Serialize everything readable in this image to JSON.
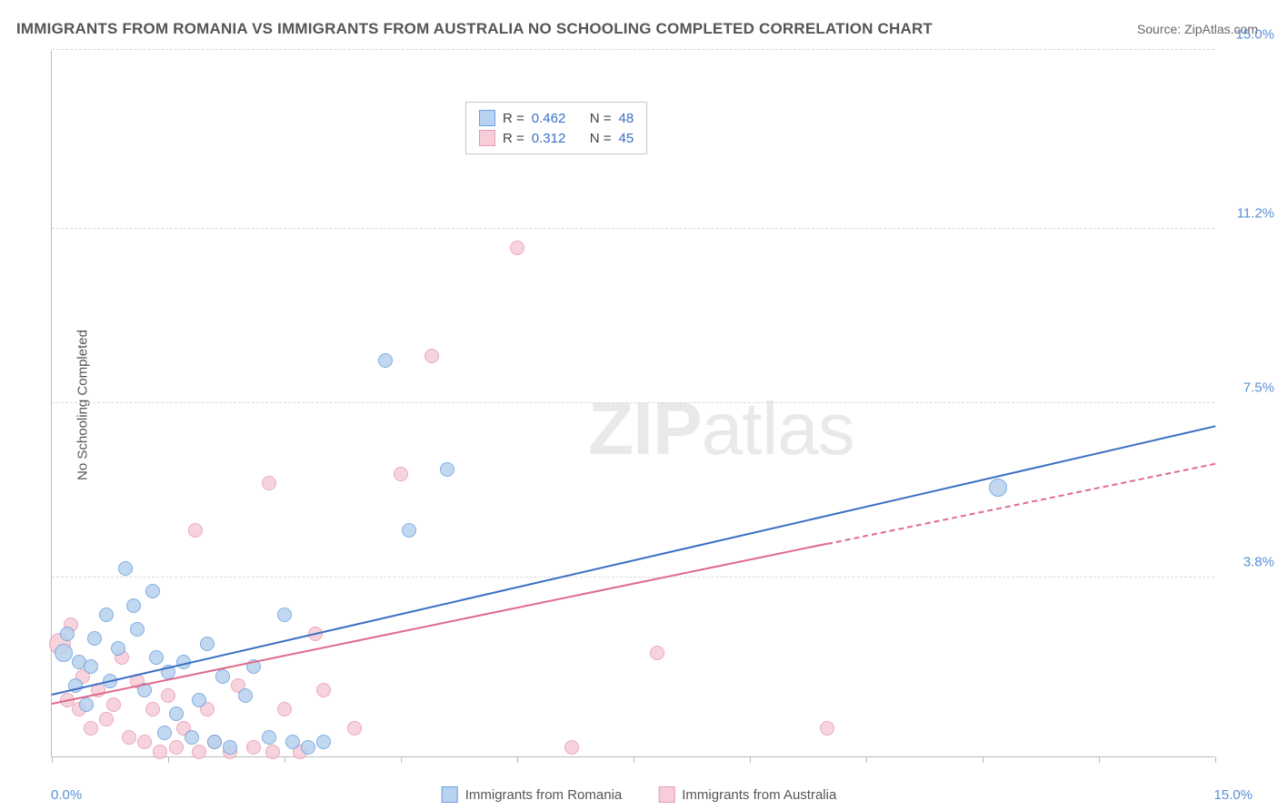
{
  "title": "IMMIGRANTS FROM ROMANIA VS IMMIGRANTS FROM AUSTRALIA NO SCHOOLING COMPLETED CORRELATION CHART",
  "source_label": "Source: ZipAtlas.com",
  "y_axis_title": "No Schooling Completed",
  "watermark_zip": "ZIP",
  "watermark_atlas": "atlas",
  "chart": {
    "type": "scatter",
    "xlim": [
      0,
      15
    ],
    "ylim": [
      0,
      15
    ],
    "x_tick_positions": [
      0,
      1.5,
      3.0,
      4.5,
      6.0,
      7.5,
      9.0,
      10.5,
      12.0,
      13.5,
      15.0
    ],
    "x_label_min": "0.0%",
    "x_label_max": "15.0%",
    "y_ticks": [
      {
        "pos": 3.8,
        "label": "3.8%"
      },
      {
        "pos": 7.5,
        "label": "7.5%"
      },
      {
        "pos": 11.2,
        "label": "11.2%"
      },
      {
        "pos": 15.0,
        "label": "15.0%"
      }
    ],
    "background_color": "#ffffff",
    "grid_color": "#d8d8d8",
    "series": [
      {
        "name": "Immigrants from Romania",
        "color_fill": "#b8d2ef",
        "color_stroke": "#6ca0dd",
        "line_color": "#3b6fc4",
        "r_label": "R =",
        "r_value": "0.462",
        "n_label": "N =",
        "n_value": "48",
        "marker_radius": 8,
        "trend": {
          "x1": 0,
          "y1": 1.3,
          "x2": 15,
          "y2": 7.0,
          "solid_until_x": 15
        },
        "points": [
          {
            "x": 0.15,
            "y": 2.2,
            "r": 10
          },
          {
            "x": 0.2,
            "y": 2.6,
            "r": 8
          },
          {
            "x": 0.3,
            "y": 1.5,
            "r": 8
          },
          {
            "x": 0.35,
            "y": 2.0,
            "r": 8
          },
          {
            "x": 0.45,
            "y": 1.1,
            "r": 8
          },
          {
            "x": 0.5,
            "y": 1.9,
            "r": 8
          },
          {
            "x": 0.55,
            "y": 2.5,
            "r": 8
          },
          {
            "x": 0.7,
            "y": 3.0,
            "r": 8
          },
          {
            "x": 0.75,
            "y": 1.6,
            "r": 8
          },
          {
            "x": 0.85,
            "y": 2.3,
            "r": 8
          },
          {
            "x": 0.95,
            "y": 4.0,
            "r": 8
          },
          {
            "x": 1.05,
            "y": 3.2,
            "r": 8
          },
          {
            "x": 1.1,
            "y": 2.7,
            "r": 8
          },
          {
            "x": 1.2,
            "y": 1.4,
            "r": 8
          },
          {
            "x": 1.3,
            "y": 3.5,
            "r": 8
          },
          {
            "x": 1.35,
            "y": 2.1,
            "r": 8
          },
          {
            "x": 1.45,
            "y": 0.5,
            "r": 8
          },
          {
            "x": 1.5,
            "y": 1.8,
            "r": 8
          },
          {
            "x": 1.6,
            "y": 0.9,
            "r": 8
          },
          {
            "x": 1.7,
            "y": 2.0,
            "r": 8
          },
          {
            "x": 1.8,
            "y": 0.4,
            "r": 8
          },
          {
            "x": 1.9,
            "y": 1.2,
            "r": 8
          },
          {
            "x": 2.0,
            "y": 2.4,
            "r": 8
          },
          {
            "x": 2.1,
            "y": 0.3,
            "r": 8
          },
          {
            "x": 2.2,
            "y": 1.7,
            "r": 8
          },
          {
            "x": 2.3,
            "y": 0.2,
            "r": 8
          },
          {
            "x": 2.5,
            "y": 1.3,
            "r": 8
          },
          {
            "x": 2.6,
            "y": 1.9,
            "r": 8
          },
          {
            "x": 2.8,
            "y": 0.4,
            "r": 8
          },
          {
            "x": 3.0,
            "y": 3.0,
            "r": 8
          },
          {
            "x": 3.1,
            "y": 0.3,
            "r": 8
          },
          {
            "x": 3.3,
            "y": 0.2,
            "r": 8
          },
          {
            "x": 3.5,
            "y": 0.3,
            "r": 8
          },
          {
            "x": 4.3,
            "y": 8.4,
            "r": 8
          },
          {
            "x": 4.6,
            "y": 4.8,
            "r": 8
          },
          {
            "x": 5.1,
            "y": 6.1,
            "r": 8
          },
          {
            "x": 12.2,
            "y": 5.7,
            "r": 10
          }
        ]
      },
      {
        "name": "Immigrants from Australia",
        "color_fill": "#f6cdd8",
        "color_stroke": "#e79bb0",
        "line_color": "#e06a8a",
        "r_label": "R =",
        "r_value": "0.312",
        "n_label": "N =",
        "n_value": "45",
        "marker_radius": 8,
        "trend": {
          "x1": 0,
          "y1": 1.1,
          "x2": 15,
          "y2": 6.2,
          "solid_until_x": 10
        },
        "points": [
          {
            "x": 0.1,
            "y": 2.4,
            "r": 12
          },
          {
            "x": 0.2,
            "y": 1.2,
            "r": 8
          },
          {
            "x": 0.25,
            "y": 2.8,
            "r": 8
          },
          {
            "x": 0.35,
            "y": 1.0,
            "r": 8
          },
          {
            "x": 0.4,
            "y": 1.7,
            "r": 8
          },
          {
            "x": 0.5,
            "y": 0.6,
            "r": 8
          },
          {
            "x": 0.6,
            "y": 1.4,
            "r": 8
          },
          {
            "x": 0.7,
            "y": 0.8,
            "r": 8
          },
          {
            "x": 0.8,
            "y": 1.1,
            "r": 8
          },
          {
            "x": 0.9,
            "y": 2.1,
            "r": 8
          },
          {
            "x": 1.0,
            "y": 0.4,
            "r": 8
          },
          {
            "x": 1.1,
            "y": 1.6,
            "r": 8
          },
          {
            "x": 1.2,
            "y": 0.3,
            "r": 8
          },
          {
            "x": 1.3,
            "y": 1.0,
            "r": 8
          },
          {
            "x": 1.4,
            "y": 0.1,
            "r": 8
          },
          {
            "x": 1.5,
            "y": 1.3,
            "r": 8
          },
          {
            "x": 1.6,
            "y": 0.2,
            "r": 8
          },
          {
            "x": 1.7,
            "y": 0.6,
            "r": 8
          },
          {
            "x": 1.85,
            "y": 4.8,
            "r": 8
          },
          {
            "x": 1.9,
            "y": 0.1,
            "r": 8
          },
          {
            "x": 2.0,
            "y": 1.0,
            "r": 8
          },
          {
            "x": 2.1,
            "y": 0.3,
            "r": 8
          },
          {
            "x": 2.3,
            "y": 0.1,
            "r": 8
          },
          {
            "x": 2.4,
            "y": 1.5,
            "r": 8
          },
          {
            "x": 2.6,
            "y": 0.2,
            "r": 8
          },
          {
            "x": 2.8,
            "y": 5.8,
            "r": 8
          },
          {
            "x": 2.85,
            "y": 0.1,
            "r": 8
          },
          {
            "x": 3.0,
            "y": 1.0,
            "r": 8
          },
          {
            "x": 3.2,
            "y": 0.1,
            "r": 8
          },
          {
            "x": 3.4,
            "y": 2.6,
            "r": 8
          },
          {
            "x": 3.5,
            "y": 1.4,
            "r": 8
          },
          {
            "x": 3.9,
            "y": 0.6,
            "r": 8
          },
          {
            "x": 4.5,
            "y": 6.0,
            "r": 8
          },
          {
            "x": 4.9,
            "y": 8.5,
            "r": 8
          },
          {
            "x": 6.0,
            "y": 10.8,
            "r": 8
          },
          {
            "x": 6.7,
            "y": 0.2,
            "r": 8
          },
          {
            "x": 7.8,
            "y": 2.2,
            "r": 8
          },
          {
            "x": 10.0,
            "y": 0.6,
            "r": 8
          }
        ]
      }
    ]
  },
  "bottom_legend": [
    {
      "label": "Immigrants from Romania",
      "fill": "#b8d2ef",
      "stroke": "#6ca0dd"
    },
    {
      "label": "Immigrants from Australia",
      "fill": "#f6cdd8",
      "stroke": "#e79bb0"
    }
  ]
}
